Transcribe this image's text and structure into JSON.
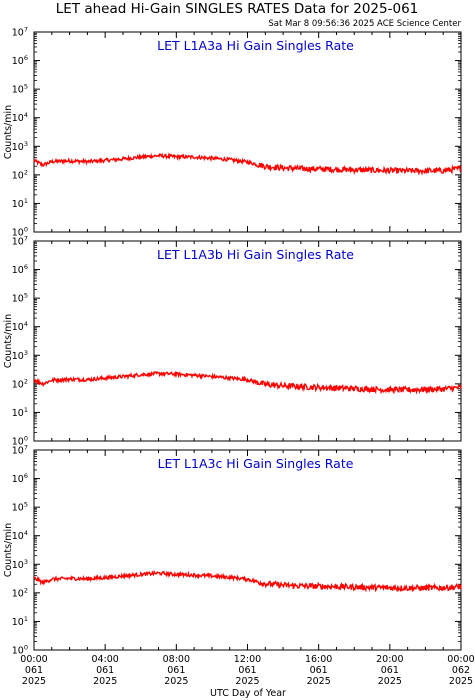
{
  "title": "LET ahead Hi-Gain SINGLES RATES Data for 2025-061",
  "timestamp": "Sat Mar  8 09:56:36 2025 ACE Science Center",
  "colors": {
    "series": "#ff0000",
    "panel_label": "#0000cc",
    "axes": "#000000"
  },
  "chart_data": {
    "type": "line",
    "xlabel": "UTC Day of Year",
    "x_unit": "hours since 2025-061 00:00",
    "xlim": [
      0,
      24
    ],
    "x_ticks": [
      {
        "time": "00:00",
        "doy": "061",
        "year": "2025"
      },
      {
        "time": "04:00",
        "doy": "061",
        "year": "2025"
      },
      {
        "time": "08:00",
        "doy": "061",
        "year": "2025"
      },
      {
        "time": "12:00",
        "doy": "061",
        "year": "2025"
      },
      {
        "time": "16:00",
        "doy": "061",
        "year": "2025"
      },
      {
        "time": "20:00",
        "doy": "061",
        "year": "2025"
      },
      {
        "time": "00:00",
        "doy": "062",
        "year": "2025"
      }
    ],
    "y_scale": "log",
    "y_tick_exponents": [
      0,
      1,
      2,
      3,
      4,
      5,
      6,
      7
    ],
    "panels": [
      {
        "label": "LET L1A3a Hi Gain Singles Rate",
        "ylabel": "Counts/min",
        "ylim": [
          1,
          10000000
        ],
        "series": {
          "x": [
            0,
            0.5,
            1,
            1.5,
            2,
            3,
            4,
            5,
            6,
            7,
            8,
            9,
            10,
            11,
            12,
            13,
            14,
            15,
            16,
            17,
            18,
            19,
            20,
            21,
            22,
            23,
            24
          ],
          "values": [
            320,
            220,
            290,
            300,
            310,
            290,
            320,
            360,
            420,
            470,
            430,
            420,
            380,
            340,
            280,
            200,
            175,
            165,
            160,
            155,
            150,
            145,
            140,
            138,
            138,
            140,
            165
          ]
        }
      },
      {
        "label": "LET L1A3b Hi Gain Singles Rate",
        "ylabel": "Counts/min",
        "ylim": [
          1,
          10000000
        ],
        "series": {
          "x": [
            0,
            0.5,
            1,
            1.5,
            2,
            3,
            4,
            5,
            6,
            7,
            8,
            9,
            10,
            11,
            12,
            13,
            14,
            15,
            16,
            17,
            18,
            19,
            20,
            21,
            22,
            23,
            24
          ],
          "values": [
            140,
            100,
            135,
            140,
            145,
            140,
            160,
            180,
            210,
            230,
            220,
            200,
            180,
            160,
            140,
            95,
            85,
            80,
            75,
            72,
            68,
            65,
            62,
            62,
            64,
            66,
            75
          ]
        }
      },
      {
        "label": "LET L1A3c Hi Gain Singles Rate",
        "ylabel": "Counts/min",
        "ylim": [
          1,
          10000000
        ],
        "series": {
          "x": [
            0,
            0.5,
            1,
            1.5,
            2,
            3,
            4,
            5,
            6,
            7,
            8,
            9,
            10,
            11,
            12,
            13,
            14,
            15,
            16,
            17,
            18,
            19,
            20,
            21,
            22,
            23,
            24
          ],
          "values": [
            330,
            230,
            300,
            310,
            320,
            310,
            340,
            390,
            440,
            490,
            440,
            420,
            390,
            350,
            300,
            210,
            185,
            175,
            170,
            165,
            160,
            155,
            150,
            148,
            148,
            150,
            165
          ]
        }
      }
    ]
  }
}
